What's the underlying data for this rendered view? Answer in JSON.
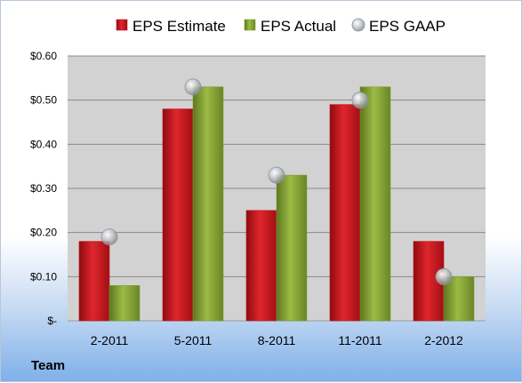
{
  "footer_label": "Team",
  "colors": {
    "estimate": "#c0141b",
    "actual": "#7e9b2e",
    "gaap": "#a8acb0",
    "plot_bg": "#d2d2d2",
    "grid": "#8a8a8a"
  },
  "chart_data": {
    "type": "bar",
    "title": "",
    "xlabel": "",
    "ylabel": "",
    "categories": [
      "2-2011",
      "5-2011",
      "8-2011",
      "11-2011",
      "2-2012"
    ],
    "series": [
      {
        "name": "EPS Estimate",
        "kind": "bar",
        "values": [
          0.18,
          0.48,
          0.25,
          0.49,
          0.18
        ]
      },
      {
        "name": "EPS Actual",
        "kind": "bar",
        "values": [
          0.08,
          0.53,
          0.33,
          0.53,
          0.1
        ]
      },
      {
        "name": "EPS GAAP",
        "kind": "marker",
        "values": [
          0.19,
          0.53,
          0.33,
          0.5,
          0.1
        ]
      }
    ],
    "ylim": [
      0,
      0.6
    ],
    "yticks": [
      0,
      0.1,
      0.2,
      0.3,
      0.4,
      0.5,
      0.6
    ],
    "ytick_labels": [
      "$-",
      "$0.10",
      "$0.20",
      "$0.30",
      "$0.40",
      "$0.50",
      "$0.60"
    ],
    "grid": true,
    "legend_position": "top"
  }
}
